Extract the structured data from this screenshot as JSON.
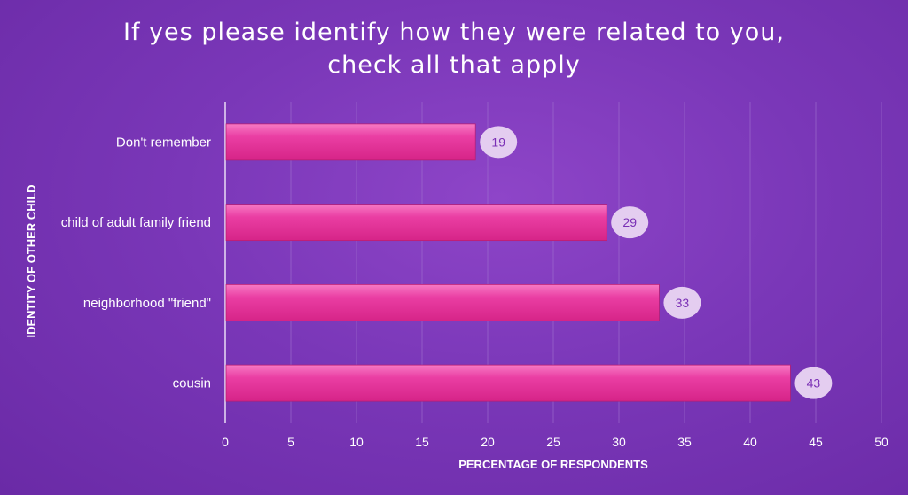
{
  "chart_data": {
    "type": "bar",
    "orientation": "horizontal",
    "title_lines": [
      "If yes please identify how they were related to you,",
      "check all that apply"
    ],
    "categories": [
      "Don't remember",
      "child of adult family friend",
      "neighborhood \"friend\"",
      "cousin"
    ],
    "values": [
      19,
      29,
      33,
      43
    ],
    "xlabel": "PERCENTAGE OF RESPONDENTS",
    "ylabel": "IDENTITY OF OTHER CHILD",
    "xlim": [
      0,
      50
    ],
    "xticks": [
      0,
      5,
      10,
      15,
      20,
      25,
      30,
      35,
      40,
      45,
      50
    ],
    "grid": true,
    "data_labels": true,
    "colors": {
      "bar": "#e8349a",
      "bar_highlight": "#f56bbd",
      "background": "#7a37b8",
      "gridline": "#a071cf",
      "label_bubble": "#e4cdf0"
    }
  }
}
